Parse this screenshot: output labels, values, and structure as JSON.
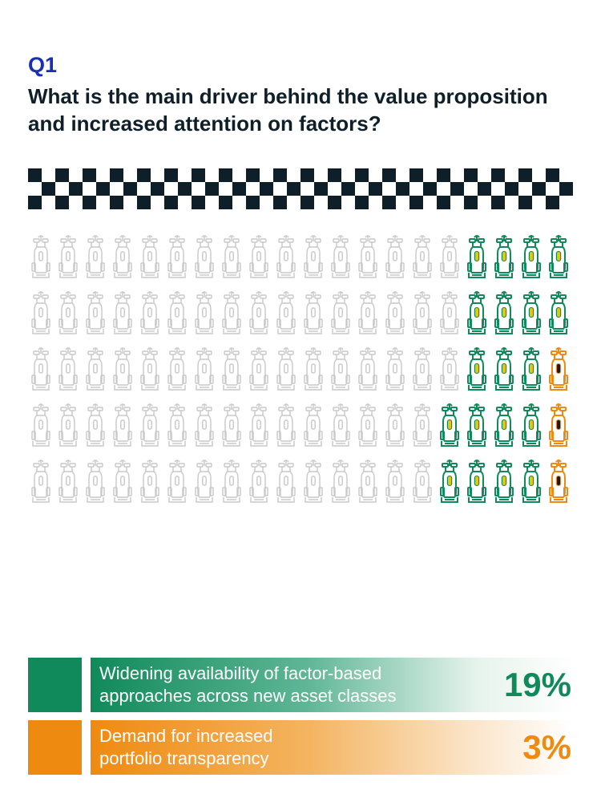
{
  "header": {
    "question_number": "Q1",
    "question": "What is the main driver behind the value proposition and increased attention on factors?"
  },
  "chart_data": {
    "type": "pictograph",
    "icon": "race-car-icon",
    "rows": 5,
    "cols": 20,
    "total_icons": 100,
    "series": [
      {
        "name": "Widening availability of factor-based approaches across new asset classes",
        "value": 19,
        "display": "19%",
        "color": "#108a5a"
      },
      {
        "name": "Demand for increased portfolio transparency",
        "value": 3,
        "display": "3%",
        "color": "#ef8a10"
      }
    ],
    "row_counts": [
      {
        "green": 4,
        "orange": 0
      },
      {
        "green": 4,
        "orange": 0
      },
      {
        "green": 3,
        "orange": 1
      },
      {
        "green": 4,
        "orange": 1
      },
      {
        "green": 4,
        "orange": 1
      }
    ],
    "colors": {
      "inactive": "#c8c8c8",
      "green": "#108a5a",
      "orange": "#ef8a10",
      "checker": "#0f1f2a"
    }
  }
}
